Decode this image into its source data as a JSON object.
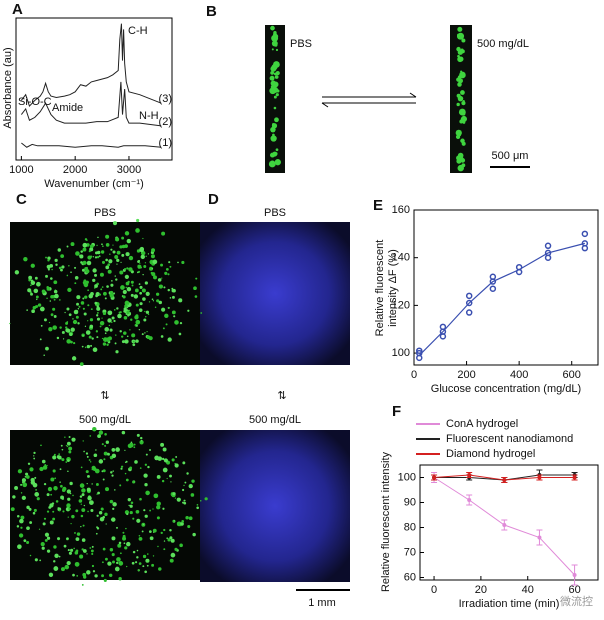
{
  "panel_labels": {
    "B": "B",
    "C": "C",
    "D": "D"
  },
  "panel_b": {
    "left_label": "PBS",
    "right_label": "500 mg/dL",
    "scale_bar": "500 μm"
  },
  "panel_c": {
    "top_label": "PBS",
    "bottom_label": "500 mg/dL"
  },
  "panel_d": {
    "top_label": "PBS",
    "bottom_label": "500 mg/dL",
    "scale_bar": "1 mm"
  },
  "watermark": "微流控",
  "chart_data": [
    {
      "type": "line",
      "panel": "A",
      "xlabel": "Wavenumber (cm⁻¹)",
      "ylabel": "Absorbance (au)",
      "xlim": [
        900,
        3800
      ],
      "ylim": [
        0,
        10
      ],
      "xticks": [
        1000,
        2000,
        3000
      ],
      "annotations": [
        "Si-O-C",
        "Amide",
        "C-H",
        "N-H"
      ],
      "series": [
        {
          "name": "(1)",
          "color": "#222",
          "x": [
            1000,
            1100,
            1200,
            1300,
            1500,
            1700,
            2000,
            2300,
            2500,
            2800,
            2900,
            3000,
            3300,
            3600
          ],
          "values": [
            1.2,
            0.9,
            1.1,
            1.0,
            1.0,
            1.0,
            0.9,
            1.0,
            1.0,
            0.9,
            1.0,
            1.0,
            1.0,
            0.9
          ]
        },
        {
          "name": "(2)",
          "color": "#222",
          "x": [
            1000,
            1080,
            1150,
            1250,
            1350,
            1450,
            1550,
            1650,
            1800,
            2000,
            2200,
            2400,
            2600,
            2800,
            2850,
            2880,
            2920,
            2950,
            3000,
            3200,
            3400,
            3600
          ],
          "values": [
            3.2,
            3.6,
            2.8,
            3.0,
            3.4,
            4.0,
            3.2,
            2.8,
            2.6,
            2.6,
            2.6,
            2.7,
            2.7,
            3.0,
            5.5,
            3.2,
            5.0,
            3.0,
            2.6,
            2.6,
            2.5,
            2.4
          ]
        },
        {
          "name": "(3)",
          "color": "#222",
          "x": [
            1000,
            1080,
            1150,
            1250,
            1350,
            1400,
            1450,
            1500,
            1550,
            1650,
            1800,
            1900,
            2000,
            2100,
            2200,
            2300,
            2400,
            2600,
            2700,
            2800,
            2830,
            2860,
            2880,
            2900,
            2920,
            2950,
            3000,
            3200,
            3400,
            3600
          ],
          "values": [
            4.2,
            4.6,
            3.8,
            4.2,
            4.5,
            4.8,
            5.4,
            4.8,
            4.5,
            4.4,
            4.5,
            4.6,
            4.8,
            5.3,
            5.2,
            5.5,
            5.6,
            5.8,
            6.0,
            6.3,
            8.5,
            9.6,
            7.0,
            9.2,
            6.8,
            5.5,
            4.8,
            4.6,
            4.3,
            4.0
          ]
        }
      ]
    },
    {
      "type": "scatter",
      "panel": "E",
      "xlabel": "Glucose concentration (mg/dL)",
      "ylabel": "Relative fluorescent intensity ΔF (%)",
      "xlim": [
        0,
        700
      ],
      "ylim": [
        95,
        160
      ],
      "xticks": [
        0,
        200,
        400,
        600
      ],
      "yticks": [
        100,
        120,
        140,
        160
      ],
      "series": [
        {
          "color": "#3a4fb0",
          "x": [
            20,
            110,
            210,
            300,
            400,
            510,
            650
          ],
          "values": [
            99,
            109,
            121,
            130,
            135,
            142,
            146
          ]
        }
      ],
      "points": {
        "color": "#3a4fb0",
        "x": [
          20,
          20,
          20,
          110,
          110,
          110,
          210,
          210,
          210,
          300,
          300,
          300,
          400,
          400,
          510,
          510,
          510,
          650,
          650,
          650
        ],
        "y": [
          98,
          100,
          101,
          107,
          109,
          111,
          117,
          121,
          124,
          127,
          130,
          132,
          134,
          136,
          140,
          142,
          145,
          144,
          146,
          150
        ]
      }
    },
    {
      "type": "errorline",
      "panel": "F",
      "xlabel": "Irradiation time (min)",
      "ylabel": "Relative fluorescent intensity",
      "xlim": [
        -6,
        70
      ],
      "ylim": [
        59,
        105
      ],
      "xticks": [
        0,
        20,
        40,
        60
      ],
      "yticks": [
        60,
        70,
        80,
        90,
        100
      ],
      "x": [
        0,
        15,
        30,
        45,
        60
      ],
      "series": [
        {
          "name": "ConA hydrogel",
          "color": "#e08ad8",
          "values": [
            100,
            91,
            81,
            76,
            61
          ],
          "errors": [
            2,
            2,
            2,
            3,
            4
          ]
        },
        {
          "name": "Fluorescent nanodiamond",
          "color": "#222",
          "values": [
            100,
            100,
            99,
            101,
            101
          ],
          "errors": [
            1,
            1,
            1,
            2,
            1
          ]
        },
        {
          "name": "Diamond hydrogel",
          "color": "#d42020",
          "values": [
            100,
            101,
            99,
            100,
            100
          ],
          "errors": [
            1,
            1,
            1,
            1,
            1
          ]
        }
      ]
    }
  ]
}
